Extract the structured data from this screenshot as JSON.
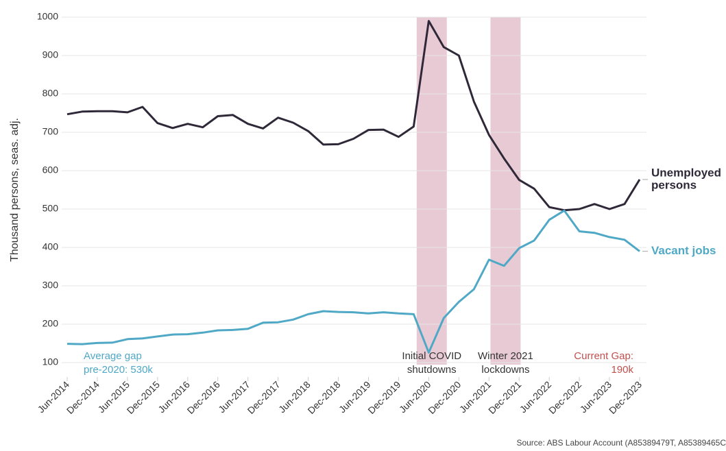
{
  "chart_data": {
    "type": "line",
    "y_label": "Thousand persons, seas. adj.",
    "categories": [
      "Jun-2014",
      null,
      "Dec-2014",
      null,
      "Jun-2015",
      null,
      "Dec-2015",
      null,
      "Jun-2016",
      null,
      "Dec-2016",
      null,
      "Jun-2017",
      null,
      "Dec-2017",
      null,
      "Jun-2018",
      null,
      "Dec-2018",
      null,
      "Jun-2019",
      null,
      "Dec-2019",
      null,
      "Jun-2020",
      null,
      "Dec-2020",
      null,
      "Jun-2021",
      null,
      "Dec-2021",
      null,
      "Jun-2022",
      null,
      "Dec-2022",
      null,
      "Jun-2023",
      null,
      "Dec-2023"
    ],
    "series": [
      {
        "name": [
          "Unemployed",
          "persons"
        ],
        "color": "#2e2838",
        "values": [
          747,
          754,
          755,
          755,
          752,
          766,
          724,
          711,
          722,
          713,
          742,
          745,
          722,
          710,
          738,
          725,
          703,
          668,
          669,
          683,
          706,
          707,
          688,
          715,
          990,
          922,
          900,
          780,
          693,
          632,
          576,
          553,
          505,
          497,
          500,
          513,
          500,
          513,
          577
        ]
      },
      {
        "name": [
          "Vacant jobs"
        ],
        "color": "#4fa8c5",
        "values": [
          149,
          148,
          151,
          152,
          161,
          163,
          168,
          173,
          174,
          178,
          184,
          185,
          188,
          204,
          205,
          212,
          226,
          234,
          232,
          231,
          228,
          231,
          228,
          226,
          126,
          216,
          258,
          291,
          368,
          352,
          398,
          418,
          472,
          496,
          442,
          438,
          427,
          420,
          390
        ]
      }
    ],
    "shaded_periods": [
      {
        "start": 23.2,
        "end": 25.2,
        "label": [
          "Initial COVID",
          "shutdowns"
        ]
      },
      {
        "start": 28.1,
        "end": 30.1,
        "label": [
          "Winter 2021",
          "lockdowns"
        ]
      }
    ],
    "annotations": [
      {
        "lines": [
          "Average gap",
          "pre-2020: 530k"
        ],
        "color": "#4fa8c5"
      },
      {
        "lines": [
          "Current Gap:",
          "190k"
        ],
        "color": "#c0504d"
      }
    ],
    "ylim": [
      100,
      1000
    ],
    "yticks": [
      100,
      200,
      300,
      400,
      500,
      600,
      700,
      800,
      900,
      1000
    ],
    "grid": true,
    "source": "Source: ABS Labour Account (A85389479T, A85389465C"
  }
}
